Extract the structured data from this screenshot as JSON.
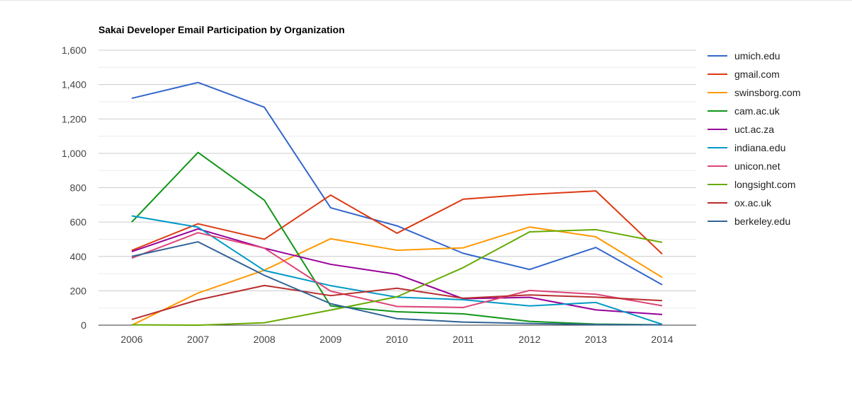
{
  "chart_data": {
    "type": "line",
    "title": "Sakai Developer Email Participation by Organization",
    "xlabel": "",
    "ylabel": "",
    "categories": [
      "2006",
      "2007",
      "2008",
      "2009",
      "2010",
      "2011",
      "2012",
      "2013",
      "2014"
    ],
    "ylim": [
      0,
      1600
    ],
    "yticks": [
      0,
      200,
      400,
      600,
      800,
      1000,
      1200,
      1400,
      1600
    ],
    "ytick_labels": [
      "0",
      "200",
      "400",
      "600",
      "800",
      "1,000",
      "1,200",
      "1,400",
      "1,600"
    ],
    "grid": true,
    "legend_position": "right",
    "series": [
      {
        "name": "umich.edu",
        "color": "#3366cc",
        "values": [
          1320,
          1412,
          1268,
          683,
          578,
          418,
          324,
          452,
          235
        ]
      },
      {
        "name": "gmail.com",
        "color": "#dc3912",
        "values": [
          435,
          590,
          500,
          757,
          535,
          733,
          761,
          781,
          414
        ]
      },
      {
        "name": "swinsborg.com",
        "color": "#ff9900",
        "values": [
          0,
          187,
          320,
          503,
          436,
          450,
          571,
          514,
          278
        ]
      },
      {
        "name": "cam.ac.uk",
        "color": "#109618",
        "values": [
          600,
          1005,
          727,
          112,
          78,
          66,
          22,
          6,
          2
        ]
      },
      {
        "name": "uct.ac.za",
        "color": "#990099",
        "values": [
          428,
          560,
          448,
          354,
          296,
          154,
          162,
          89,
          62
        ]
      },
      {
        "name": "indiana.edu",
        "color": "#0099c6",
        "values": [
          636,
          570,
          318,
          230,
          163,
          148,
          112,
          132,
          5
        ]
      },
      {
        "name": "unicon.net",
        "color": "#dd4477",
        "values": [
          390,
          538,
          448,
          198,
          109,
          103,
          202,
          180,
          113
        ]
      },
      {
        "name": "longsight.com",
        "color": "#66aa00",
        "values": [
          2,
          0,
          14,
          88,
          165,
          335,
          543,
          556,
          482
        ]
      },
      {
        "name": "ox.ac.uk",
        "color": "#b82e2e",
        "values": [
          33,
          147,
          231,
          172,
          215,
          157,
          176,
          163,
          143
        ]
      },
      {
        "name": "berkeley.edu",
        "color": "#316395",
        "values": [
          400,
          485,
          290,
          125,
          38,
          18,
          10,
          3,
          2
        ]
      }
    ]
  }
}
